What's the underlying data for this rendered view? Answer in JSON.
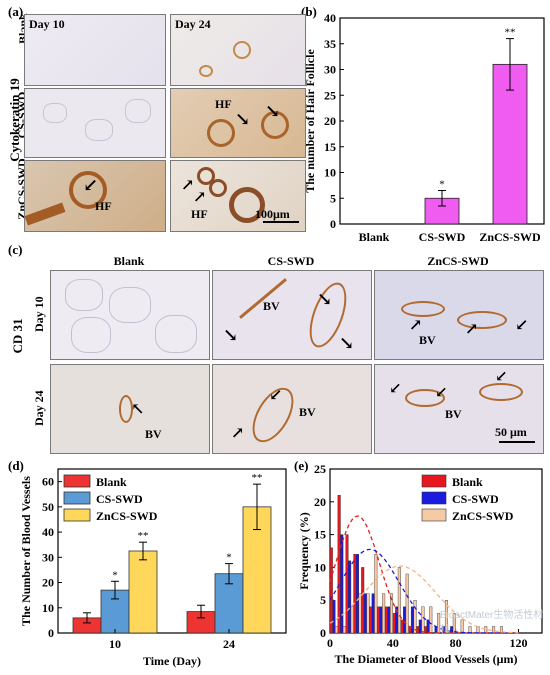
{
  "panel_labels": {
    "a": "(a)",
    "b": "(b)",
    "c": "(c)",
    "d": "(d)",
    "e": "(e)"
  },
  "panel_a": {
    "vertical_label": "Cytokeratin 19",
    "columns": [
      "Day 10",
      "Day 24"
    ],
    "rows": [
      "Blank",
      "CS-SWD",
      "ZnCS-SWD"
    ],
    "annotations": {
      "hf": "HF",
      "scale": "100μm"
    }
  },
  "panel_c": {
    "vertical_label": "CD 31",
    "columns": [
      "Blank",
      "CS-SWD",
      "ZnCS-SWD"
    ],
    "rows": [
      "Day 10",
      "Day 24"
    ],
    "annotations": {
      "bv": "BV",
      "scale": "50 μm"
    }
  },
  "colors": {
    "blank": "#ee3333",
    "cs": "#5b9bd5",
    "zn": "#ffd75a",
    "magenta": "#ef5cef",
    "e_blank": "#e8161e",
    "e_cs": "#1a1ae0",
    "e_zn": "#f7caa6"
  },
  "chart_data": [
    {
      "id": "b",
      "type": "bar",
      "categories": [
        "Blank",
        "CS-SWD",
        "ZnCS-SWD"
      ],
      "values": [
        0,
        5,
        31
      ],
      "errors": [
        0,
        1.5,
        5
      ],
      "annotations": [
        "",
        "*",
        "**"
      ],
      "ylabel": "The number of Hair Follicle",
      "ylim": [
        0,
        40
      ],
      "yticks": [
        "0",
        "5",
        "10",
        "15",
        "20",
        "25",
        "30",
        "35",
        "40"
      ]
    },
    {
      "id": "d",
      "type": "bar",
      "categories": [
        "10",
        "24"
      ],
      "series": [
        {
          "name": "Blank",
          "values": [
            6,
            8.5
          ],
          "errors": [
            2,
            2.5
          ],
          "annotations": [
            "",
            ""
          ]
        },
        {
          "name": "CS-SWD",
          "values": [
            17,
            23.5
          ],
          "errors": [
            3.5,
            4
          ],
          "annotations": [
            "*",
            "*"
          ]
        },
        {
          "name": "ZnCS-SWD",
          "values": [
            32.5,
            50
          ],
          "errors": [
            3.5,
            9
          ],
          "annotations": [
            "**",
            "**"
          ]
        }
      ],
      "xlabel": "Time (Day)",
      "ylabel": "The Number of Blood Vessels",
      "ylim": [
        0,
        65
      ],
      "yticks": [
        "0",
        "10",
        "20",
        "30",
        "40",
        "50",
        "60"
      ],
      "legend": "top-left"
    },
    {
      "id": "e",
      "type": "bar",
      "x": [
        0,
        5,
        10,
        15,
        20,
        25,
        30,
        35,
        40,
        45,
        50,
        55,
        60,
        65,
        70,
        75,
        80,
        85,
        90,
        95,
        100,
        105,
        110,
        115,
        120
      ],
      "series": [
        {
          "name": "Blank",
          "values": [
            13,
            21,
            15,
            12,
            10,
            4,
            4,
            4,
            3,
            2,
            1,
            1,
            1,
            0,
            0,
            0,
            0,
            0,
            0,
            0,
            0,
            0,
            0,
            0,
            0
          ]
        },
        {
          "name": "CS-SWD",
          "values": [
            5,
            15,
            11,
            12,
            6,
            6,
            4,
            4,
            4,
            4,
            4,
            2,
            2,
            1,
            1,
            1,
            0,
            0,
            0,
            0,
            0,
            0,
            0,
            0,
            0
          ]
        },
        {
          "name": "ZnCS-SWD",
          "values": [
            1,
            1,
            4,
            6,
            6,
            12,
            6,
            6,
            10,
            9,
            5,
            4,
            4,
            3,
            5,
            3,
            2,
            1,
            1,
            1,
            1,
            1,
            0,
            0,
            0
          ]
        }
      ],
      "fit_curves": true,
      "xlabel": "The Diameter of Blood Vessels (μm)",
      "ylabel": "Frequency (%)",
      "xlim": [
        0,
        135
      ],
      "ylim": [
        0,
        25
      ],
      "xticks": [
        "0",
        "40",
        "80",
        "120"
      ],
      "yticks": [
        "0",
        "5",
        "10",
        "15",
        "20",
        "25"
      ],
      "legend": "top-right"
    }
  ],
  "watermark": "BioactMater生物活性材料"
}
